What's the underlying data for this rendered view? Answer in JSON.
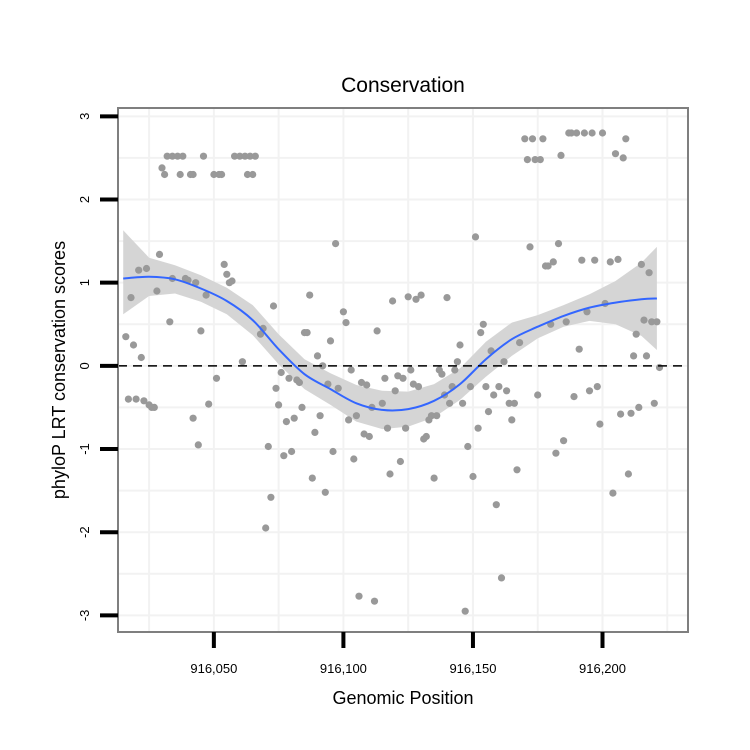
{
  "chart_data": {
    "type": "scatter",
    "title": "Conservation",
    "xlabel": "Genomic Position",
    "ylabel": "phyloP LRT conservation scores",
    "xlim": [
      916013,
      916233
    ],
    "ylim": [
      -3.2,
      3.1
    ],
    "x_ticks": [
      916050,
      916100,
      916150,
      916200
    ],
    "x_tick_labels": [
      "916,050",
      "916,100",
      "916,150",
      "916,200"
    ],
    "y_ticks": [
      -3,
      -2,
      -1,
      0,
      1,
      2,
      3
    ],
    "y_tick_labels": [
      "-3",
      "-2",
      "-1",
      "0",
      "1",
      "2",
      "3"
    ],
    "grid": true,
    "reference_line": {
      "y": 0,
      "style": "dashed",
      "color": "#000000"
    },
    "colors": {
      "points": "#999999",
      "smooth": "#3366ff",
      "band": "#d3d3d3",
      "panel_border": "#7f7f7f",
      "grid": "#f2f2f2"
    },
    "points": [
      [
        916016,
        0.35
      ],
      [
        916017,
        -0.4
      ],
      [
        916018,
        0.82
      ],
      [
        916019,
        0.25
      ],
      [
        916020,
        -0.4
      ],
      [
        916021,
        1.15
      ],
      [
        916022,
        0.1
      ],
      [
        916023,
        -0.42
      ],
      [
        916024,
        1.17
      ],
      [
        916025,
        -0.47
      ],
      [
        916026,
        -0.5
      ],
      [
        916027,
        -0.5
      ],
      [
        916028,
        0.9
      ],
      [
        916029,
        1.34
      ],
      [
        916030,
        2.38
      ],
      [
        916031,
        2.3
      ],
      [
        916032,
        2.52
      ],
      [
        916033,
        0.53
      ],
      [
        916034,
        2.52
      ],
      [
        916034,
        1.05
      ],
      [
        916036,
        2.52
      ],
      [
        916037,
        2.3
      ],
      [
        916038,
        2.52
      ],
      [
        916039,
        1.05
      ],
      [
        916040,
        1.03
      ],
      [
        916041,
        2.3
      ],
      [
        916042,
        -0.63
      ],
      [
        916042,
        2.3
      ],
      [
        916043,
        1.0
      ],
      [
        916044,
        -0.95
      ],
      [
        916045,
        0.42
      ],
      [
        916046,
        2.52
      ],
      [
        916047,
        0.85
      ],
      [
        916048,
        -0.46
      ],
      [
        916050,
        2.3
      ],
      [
        916051,
        -0.15
      ],
      [
        916052,
        2.3
      ],
      [
        916053,
        2.3
      ],
      [
        916054,
        1.22
      ],
      [
        916055,
        1.1
      ],
      [
        916056,
        1.0
      ],
      [
        916057,
        1.02
      ],
      [
        916058,
        2.52
      ],
      [
        916060,
        2.52
      ],
      [
        916061,
        0.05
      ],
      [
        916062,
        2.52
      ],
      [
        916063,
        2.3
      ],
      [
        916064,
        2.52
      ],
      [
        916065,
        2.3
      ],
      [
        916066,
        2.52
      ],
      [
        916068,
        0.38
      ],
      [
        916069,
        0.45
      ],
      [
        916070,
        -1.95
      ],
      [
        916071,
        -0.97
      ],
      [
        916072,
        -1.58
      ],
      [
        916073,
        0.72
      ],
      [
        916074,
        -0.27
      ],
      [
        916075,
        -0.47
      ],
      [
        916076,
        -0.08
      ],
      [
        916077,
        -1.08
      ],
      [
        916078,
        -0.67
      ],
      [
        916079,
        -0.15
      ],
      [
        916080,
        -1.03
      ],
      [
        916081,
        -0.63
      ],
      [
        916082,
        -0.17
      ],
      [
        916083,
        -0.2
      ],
      [
        916084,
        -0.5
      ],
      [
        916085,
        0.4
      ],
      [
        916086,
        0.4
      ],
      [
        916087,
        0.85
      ],
      [
        916088,
        -1.35
      ],
      [
        916089,
        -0.8
      ],
      [
        916090,
        0.12
      ],
      [
        916091,
        -0.6
      ],
      [
        916092,
        0.0
      ],
      [
        916093,
        -1.52
      ],
      [
        916094,
        -0.22
      ],
      [
        916095,
        0.3
      ],
      [
        916096,
        -1.03
      ],
      [
        916097,
        1.47
      ],
      [
        916098,
        -0.27
      ],
      [
        916100,
        0.65
      ],
      [
        916101,
        0.52
      ],
      [
        916102,
        -0.65
      ],
      [
        916103,
        -0.05
      ],
      [
        916104,
        -1.12
      ],
      [
        916105,
        -0.6
      ],
      [
        916106,
        -2.77
      ],
      [
        916107,
        -0.2
      ],
      [
        916108,
        -0.82
      ],
      [
        916109,
        -0.23
      ],
      [
        916110,
        -0.85
      ],
      [
        916111,
        -0.5
      ],
      [
        916112,
        -2.83
      ],
      [
        916113,
        0.42
      ],
      [
        916115,
        -0.45
      ],
      [
        916116,
        -0.15
      ],
      [
        916117,
        -0.75
      ],
      [
        916118,
        -1.3
      ],
      [
        916119,
        0.78
      ],
      [
        916120,
        -0.3
      ],
      [
        916121,
        -0.12
      ],
      [
        916122,
        -1.15
      ],
      [
        916123,
        -0.15
      ],
      [
        916124,
        -0.75
      ],
      [
        916125,
        0.83
      ],
      [
        916126,
        -0.05
      ],
      [
        916127,
        -0.22
      ],
      [
        916128,
        0.8
      ],
      [
        916129,
        -0.25
      ],
      [
        916130,
        0.85
      ],
      [
        916131,
        -0.88
      ],
      [
        916132,
        -0.85
      ],
      [
        916133,
        -0.65
      ],
      [
        916134,
        -0.6
      ],
      [
        916135,
        -1.35
      ],
      [
        916136,
        -0.6
      ],
      [
        916137,
        -0.05
      ],
      [
        916138,
        -0.1
      ],
      [
        916139,
        -0.35
      ],
      [
        916140,
        0.82
      ],
      [
        916141,
        -0.45
      ],
      [
        916142,
        -0.25
      ],
      [
        916143,
        -0.05
      ],
      [
        916144,
        0.05
      ],
      [
        916145,
        0.25
      ],
      [
        916146,
        -0.45
      ],
      [
        916147,
        -2.95
      ],
      [
        916148,
        -0.97
      ],
      [
        916149,
        -0.25
      ],
      [
        916150,
        -1.33
      ],
      [
        916151,
        1.55
      ],
      [
        916152,
        -0.75
      ],
      [
        916153,
        0.4
      ],
      [
        916154,
        0.5
      ],
      [
        916155,
        -0.25
      ],
      [
        916156,
        -0.55
      ],
      [
        916157,
        0.18
      ],
      [
        916158,
        -0.35
      ],
      [
        916159,
        -1.67
      ],
      [
        916160,
        -0.25
      ],
      [
        916161,
        -2.55
      ],
      [
        916162,
        0.05
      ],
      [
        916163,
        -0.3
      ],
      [
        916164,
        -0.45
      ],
      [
        916165,
        -0.65
      ],
      [
        916166,
        -0.45
      ],
      [
        916167,
        -1.25
      ],
      [
        916168,
        0.28
      ],
      [
        916170,
        2.73
      ],
      [
        916171,
        2.48
      ],
      [
        916172,
        1.43
      ],
      [
        916173,
        2.73
      ],
      [
        916174,
        2.48
      ],
      [
        916175,
        -0.35
      ],
      [
        916176,
        2.48
      ],
      [
        916177,
        2.73
      ],
      [
        916178,
        1.2
      ],
      [
        916179,
        1.2
      ],
      [
        916180,
        0.5
      ],
      [
        916181,
        1.25
      ],
      [
        916182,
        -1.05
      ],
      [
        916183,
        1.47
      ],
      [
        916184,
        2.53
      ],
      [
        916185,
        -0.9
      ],
      [
        916186,
        0.53
      ],
      [
        916187,
        2.8
      ],
      [
        916188,
        2.8
      ],
      [
        916189,
        -0.37
      ],
      [
        916190,
        2.8
      ],
      [
        916191,
        0.2
      ],
      [
        916192,
        1.27
      ],
      [
        916193,
        2.8
      ],
      [
        916194,
        0.65
      ],
      [
        916195,
        -0.3
      ],
      [
        916196,
        2.8
      ],
      [
        916197,
        1.27
      ],
      [
        916198,
        -0.25
      ],
      [
        916199,
        -0.7
      ],
      [
        916200,
        2.8
      ],
      [
        916201,
        0.75
      ],
      [
        916203,
        1.25
      ],
      [
        916204,
        -1.53
      ],
      [
        916205,
        2.55
      ],
      [
        916206,
        1.28
      ],
      [
        916207,
        -0.58
      ],
      [
        916208,
        2.5
      ],
      [
        916209,
        2.73
      ],
      [
        916210,
        -1.3
      ],
      [
        916211,
        -0.57
      ],
      [
        916212,
        0.12
      ],
      [
        916213,
        0.38
      ],
      [
        916214,
        -0.5
      ],
      [
        916215,
        1.22
      ],
      [
        916216,
        0.55
      ],
      [
        916217,
        0.12
      ],
      [
        916218,
        1.12
      ],
      [
        916219,
        0.53
      ],
      [
        916220,
        -0.45
      ],
      [
        916221,
        0.53
      ],
      [
        916222,
        -0.02
      ]
    ],
    "smooth_line": {
      "x": [
        916015,
        916025,
        916035,
        916045,
        916055,
        916065,
        916075,
        916085,
        916095,
        916105,
        916115,
        916125,
        916135,
        916145,
        916155,
        916165,
        916175,
        916185,
        916195,
        916205,
        916215,
        916221
      ],
      "y": [
        1.05,
        1.07,
        1.04,
        0.93,
        0.78,
        0.55,
        0.2,
        -0.1,
        -0.28,
        -0.45,
        -0.53,
        -0.52,
        -0.42,
        -0.22,
        0.08,
        0.32,
        0.47,
        0.6,
        0.7,
        0.76,
        0.8,
        0.81
      ],
      "lower": [
        0.62,
        0.84,
        0.87,
        0.77,
        0.62,
        0.37,
        0.02,
        -0.28,
        -0.47,
        -0.67,
        -0.76,
        -0.73,
        -0.62,
        -0.41,
        -0.13,
        0.12,
        0.33,
        0.47,
        0.54,
        0.5,
        0.36,
        0.19
      ],
      "upper": [
        1.63,
        1.3,
        1.21,
        1.09,
        0.94,
        0.73,
        0.38,
        0.08,
        -0.09,
        -0.23,
        -0.3,
        -0.31,
        -0.22,
        -0.03,
        0.29,
        0.52,
        0.61,
        0.73,
        0.86,
        1.02,
        1.24,
        1.43
      ]
    }
  }
}
